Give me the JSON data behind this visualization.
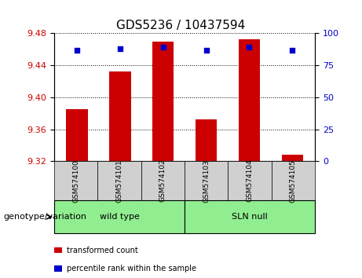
{
  "title": "GDS5236 / 10437594",
  "samples": [
    "GSM574100",
    "GSM574101",
    "GSM574102",
    "GSM574103",
    "GSM574104",
    "GSM574105"
  ],
  "transformed_counts": [
    9.385,
    9.432,
    9.47,
    9.372,
    9.473,
    9.328
  ],
  "percentile_ranks": [
    87,
    88,
    89,
    87,
    89,
    87
  ],
  "ylim_left": [
    9.32,
    9.48
  ],
  "ylim_right": [
    0,
    100
  ],
  "yticks_left": [
    9.32,
    9.36,
    9.4,
    9.44,
    9.48
  ],
  "yticks_right": [
    0,
    25,
    50,
    75,
    100
  ],
  "bar_color": "#cc0000",
  "dot_color": "#0000cc",
  "bar_bottom": 9.32,
  "groups": [
    {
      "label": "wild type",
      "indices": [
        0,
        1,
        2
      ],
      "color": "#90ee90"
    },
    {
      "label": "SLN null",
      "indices": [
        3,
        4,
        5
      ],
      "color": "#90ee90"
    }
  ],
  "group_label_prefix": "genotype/variation",
  "legend_items": [
    {
      "label": "transformed count",
      "color": "#cc0000"
    },
    {
      "label": "percentile rank within the sample",
      "color": "#0000cc"
    }
  ],
  "tick_label_color_left": "#cc0000",
  "tick_label_color_right": "#0000cc",
  "sample_box_color": "#d0d0d0"
}
